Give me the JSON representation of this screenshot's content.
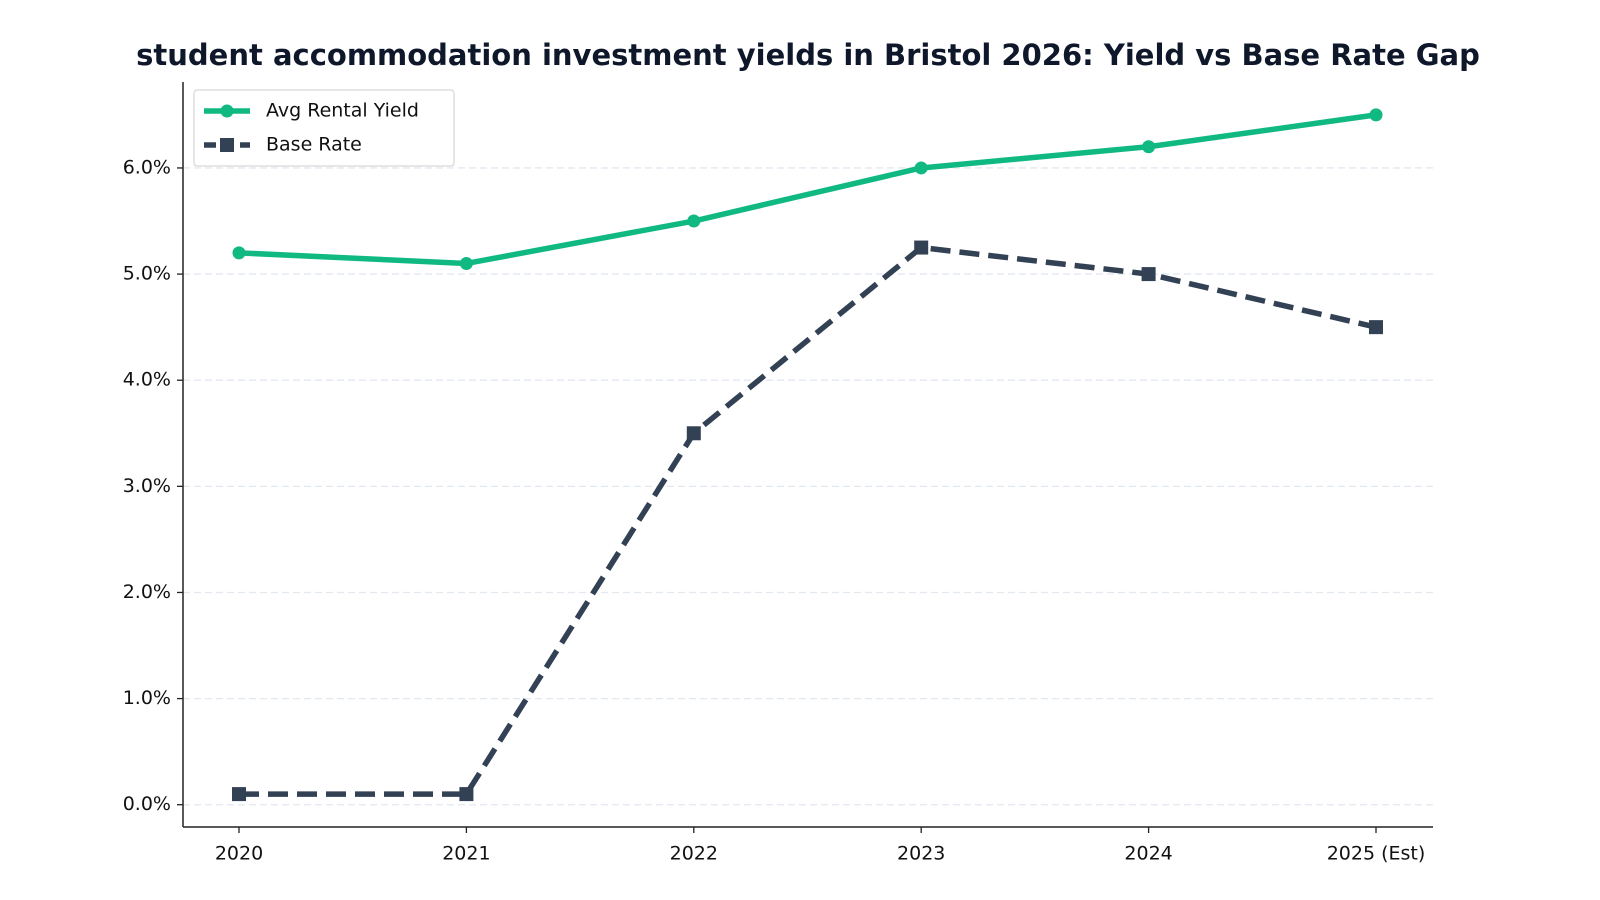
{
  "chart_data": {
    "type": "line",
    "title": "student accommodation investment yields in Bristol 2026: Yield vs Base Rate Gap",
    "categories": [
      "2020",
      "2021",
      "2022",
      "2023",
      "2024",
      "2025 (Est)"
    ],
    "series": [
      {
        "name": "Avg Rental Yield",
        "color": "#10b981",
        "linestyle": "solid",
        "marker": "circle",
        "values": [
          5.2,
          5.1,
          5.5,
          6.0,
          6.2,
          6.5
        ]
      },
      {
        "name": "Base Rate",
        "color": "#334155",
        "linestyle": "dashed",
        "marker": "square",
        "values": [
          0.1,
          0.1,
          3.5,
          5.25,
          5.0,
          4.5
        ]
      }
    ],
    "ylim": [
      -0.21,
      6.81
    ],
    "yticks": [
      {
        "value": 0,
        "label": "0.0%"
      },
      {
        "value": 1,
        "label": "1.0%"
      },
      {
        "value": 2,
        "label": "2.0%"
      },
      {
        "value": 3,
        "label": "3.0%"
      },
      {
        "value": 4,
        "label": "4.0%"
      },
      {
        "value": 5,
        "label": "5.0%"
      },
      {
        "value": 6,
        "label": "6.0%"
      }
    ],
    "grid": true,
    "legend": "upper left"
  }
}
